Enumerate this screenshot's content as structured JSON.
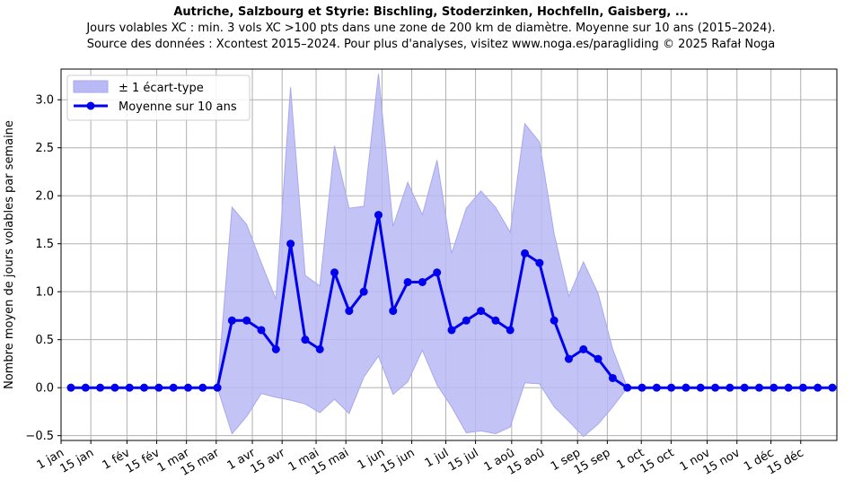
{
  "chart_data": {
    "type": "line",
    "title": "Autriche, Salzbourg et Styrie: Bischling, Stoderzinken, Hochfelln, Gaisberg, ...",
    "subtitle_lines": [
      "Jours volables XC : min. 3 vols XC >100 pts dans une zone de 200 km de diamètre. Moyenne sur 10 ans (2015–2024).",
      "Source des données : Xcontest 2015–2024. Pour plus d'analyses, visitez www.noga.es/paragliding © 2025 Rafał Noga"
    ],
    "ylabel": "Nombre moyen de jours volables par semaine",
    "xlabel": "",
    "ylim": [
      -0.55,
      3.32
    ],
    "yticks": [
      -0.5,
      0.0,
      0.5,
      1.0,
      1.5,
      2.0,
      2.5,
      3.0
    ],
    "ytick_labels": [
      "−0.5",
      "0.0",
      "0.5",
      "1.0",
      "1.5",
      "2.0",
      "2.5",
      "3.0"
    ],
    "x_tick_dates": [
      "1 jan",
      "15 jan",
      "1 fév",
      "15 fév",
      "1 mar",
      "15 mar",
      "1 avr",
      "15 avr",
      "1 mai",
      "15 mai",
      "1 jun",
      "15 jun",
      "1 jul",
      "15 jul",
      "1 aoû",
      "15 aoû",
      "1 sep",
      "15 sep",
      "1 oct",
      "15 oct",
      "1 nov",
      "15 nov",
      "1 déc",
      "15 déc"
    ],
    "grid": true,
    "legend_placement": "top-left",
    "legend": {
      "band_label": "± 1 écart-type",
      "line_label": "Moyenne sur 10 ans"
    },
    "colors": {
      "line": "#0000ee",
      "band": "#b9b9f5",
      "band_edge": "#a8a8ee",
      "grid": "#b0b0b0"
    },
    "x_weeks": [
      "1 jan",
      "8 jan",
      "15 jan",
      "22 jan",
      "29 jan",
      "5 fév",
      "12 fév",
      "19 fév",
      "26 fév",
      "5 mar",
      "12 mar",
      "19 mar",
      "26 mar",
      "2 avr",
      "9 avr",
      "16 avr",
      "23 avr",
      "30 avr",
      "7 mai",
      "14 mai",
      "21 mai",
      "28 mai",
      "4 jun",
      "11 jun",
      "18 jun",
      "25 jun",
      "2 jul",
      "9 jul",
      "16 jul",
      "23 jul",
      "30 jul",
      "6 aoû",
      "13 aoû",
      "20 aoû",
      "27 aoû",
      "3 sep",
      "10 sep",
      "17 sep",
      "24 sep",
      "1 oct",
      "8 oct",
      "15 oct",
      "22 oct",
      "29 oct",
      "5 nov",
      "12 nov",
      "19 nov",
      "26 nov",
      "3 déc",
      "10 déc",
      "17 déc",
      "24 déc",
      "31 déc"
    ],
    "series": [
      {
        "name": "Moyenne sur 10 ans",
        "values": [
          0,
          0,
          0,
          0,
          0,
          0,
          0,
          0,
          0,
          0,
          0,
          0.7,
          0.7,
          0.6,
          0.4,
          1.5,
          0.5,
          0.4,
          1.2,
          0.8,
          1.0,
          1.8,
          0.8,
          1.1,
          1.1,
          1.2,
          0.6,
          0.7,
          0.8,
          0.7,
          0.6,
          1.4,
          1.3,
          0.7,
          0.3,
          0.4,
          0.3,
          0.1,
          0,
          0,
          0,
          0,
          0,
          0,
          0,
          0,
          0,
          0,
          0,
          0,
          0,
          0,
          0
        ]
      },
      {
        "name": "± 1 écart-type",
        "upper": [
          0,
          0,
          0,
          0,
          0,
          0,
          0,
          0,
          0,
          0,
          0,
          1.88,
          1.7,
          1.3,
          0.92,
          3.13,
          1.17,
          1.06,
          2.52,
          1.87,
          1.89,
          3.27,
          1.68,
          2.14,
          1.8,
          2.37,
          1.4,
          1.87,
          2.05,
          1.88,
          1.62,
          2.75,
          2.56,
          1.6,
          0.95,
          1.31,
          0.98,
          0.4,
          0,
          0,
          0,
          0,
          0,
          0,
          0,
          0,
          0,
          0,
          0,
          0,
          0,
          0,
          0
        ],
        "lower": [
          0,
          0,
          0,
          0,
          0,
          0,
          0,
          0,
          0,
          0,
          0,
          -0.48,
          -0.3,
          -0.06,
          -0.1,
          -0.13,
          -0.17,
          -0.26,
          -0.12,
          -0.27,
          0.11,
          0.33,
          -0.07,
          0.06,
          0.39,
          0.03,
          -0.2,
          -0.47,
          -0.45,
          -0.48,
          -0.41,
          0.05,
          0.04,
          -0.2,
          -0.35,
          -0.51,
          -0.38,
          -0.2,
          0,
          0,
          0,
          0,
          0,
          0,
          0,
          0,
          0,
          0,
          0,
          0,
          0,
          0,
          0
        ]
      }
    ]
  }
}
